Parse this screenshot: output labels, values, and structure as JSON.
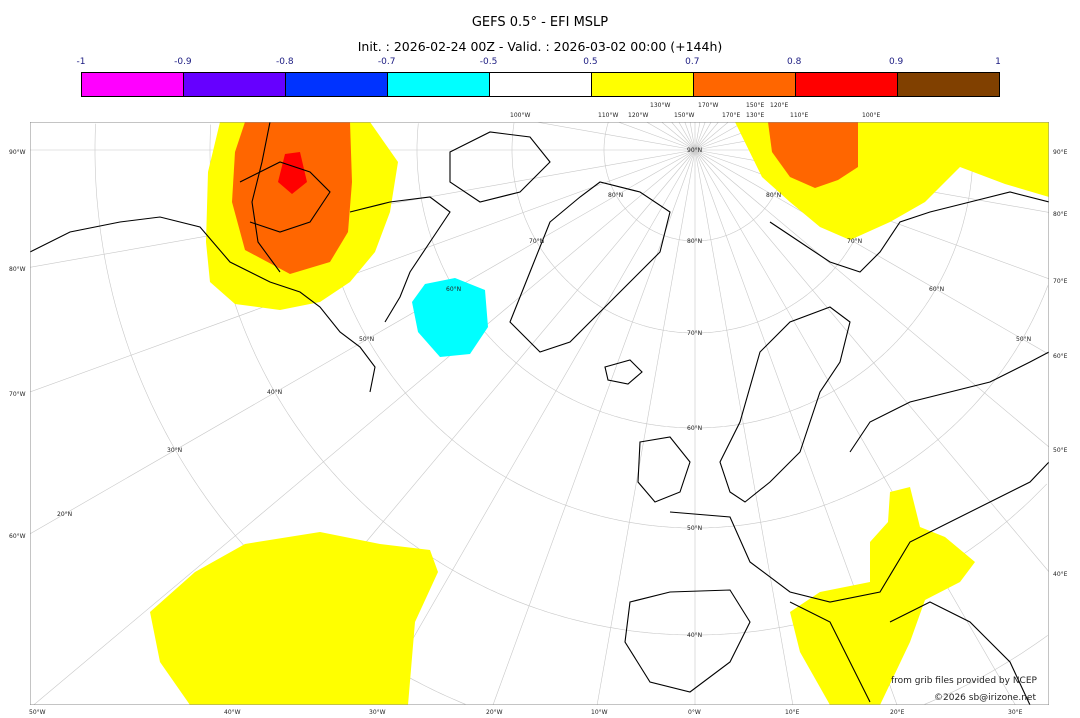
{
  "title": "GEFS 0.5° - EFI MSLP",
  "subtitle": "Init. : 2026-02-24 00Z - Valid. : 2026-03-02 00:00 (+144h)",
  "colorbar": {
    "ticks": [
      "-1",
      "-0.9",
      "-0.8",
      "-0.7",
      "-0.5",
      "0.5",
      "0.7",
      "0.8",
      "0.9",
      "1"
    ],
    "colors": [
      "#ff00ff",
      "#6600ff",
      "#0033ff",
      "#00ffff",
      "#ffffff",
      "#ffff00",
      "#ff6600",
      "#ff0000",
      "#804000"
    ]
  },
  "axes": {
    "left": [
      "90°W",
      "80°W",
      "70°W",
      "60°W"
    ],
    "bottom": [
      "50°W",
      "40°W",
      "30°W",
      "20°W",
      "10°W",
      "0°W",
      "10°E",
      "20°E",
      "30°E"
    ],
    "right": [
      "90°E",
      "80°E",
      "70°E",
      "60°E",
      "50°E",
      "40°E"
    ],
    "top": [
      "100°W",
      "110°W",
      "120°W",
      "130°W",
      "150°W",
      "170°W",
      "170°E",
      "150°E",
      "130°E",
      "120°E",
      "110°E",
      "100°E"
    ],
    "lat_center": [
      "90°N",
      "80°N",
      "70°N",
      "60°N",
      "50°N",
      "40°N"
    ],
    "lat_left": [
      "80°N",
      "70°N",
      "60°N",
      "50°N",
      "40°N",
      "30°N",
      "20°N"
    ],
    "lat_right": [
      "80°N",
      "70°N",
      "60°N",
      "50°N"
    ]
  },
  "credits": {
    "source": "from grib files provided by NCEP",
    "copyright": "©2026 sb@irizone.net"
  }
}
